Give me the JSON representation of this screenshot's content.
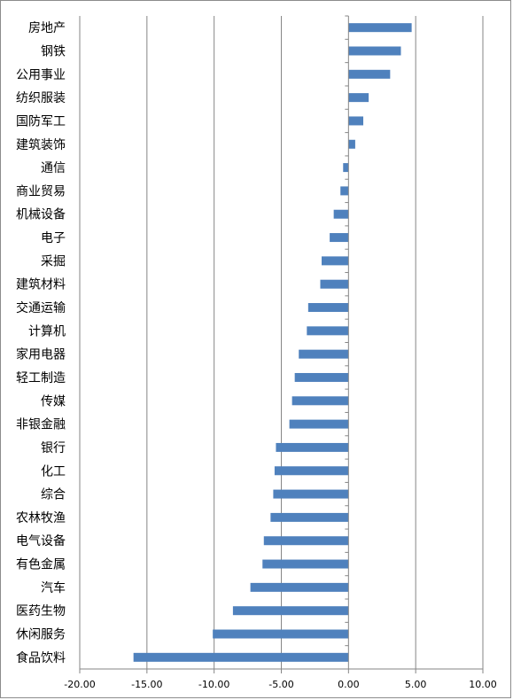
{
  "chart_data": {
    "type": "bar",
    "orientation": "horizontal",
    "categories": [
      "房地产",
      "钢铁",
      "公用事业",
      "纺织服装",
      "国防军工",
      "建筑装饰",
      "通信",
      "商业贸易",
      "机械设备",
      "电子",
      "采掘",
      "建筑材料",
      "交通运输",
      "计算机",
      "家用电器",
      "轻工制造",
      "传媒",
      "非银金融",
      "银行",
      "化工",
      "综合",
      "农林牧渔",
      "电气设备",
      "有色金属",
      "汽车",
      "医药生物",
      "休闲服务",
      "食品饮料"
    ],
    "values": [
      4.7,
      3.9,
      3.1,
      1.5,
      1.1,
      0.5,
      -0.4,
      -0.6,
      -1.1,
      -1.4,
      -2.0,
      -2.1,
      -3.0,
      -3.1,
      -3.7,
      -4.0,
      -4.2,
      -4.4,
      -5.4,
      -5.5,
      -5.6,
      -5.8,
      -6.3,
      -6.4,
      -7.3,
      -8.6,
      -10.1,
      -16.0
    ],
    "xlim": [
      -20,
      10
    ],
    "xticks": [
      "-20.00",
      "-15.00",
      "-10.00",
      "-5.00",
      "0.00",
      "5.00",
      "10.00"
    ],
    "title": "",
    "xlabel": "",
    "ylabel": "",
    "grid": "vertical",
    "legend": "none",
    "bar_color": "#4f81bd",
    "grid_color": "#868686",
    "axis_color": "#868686"
  }
}
